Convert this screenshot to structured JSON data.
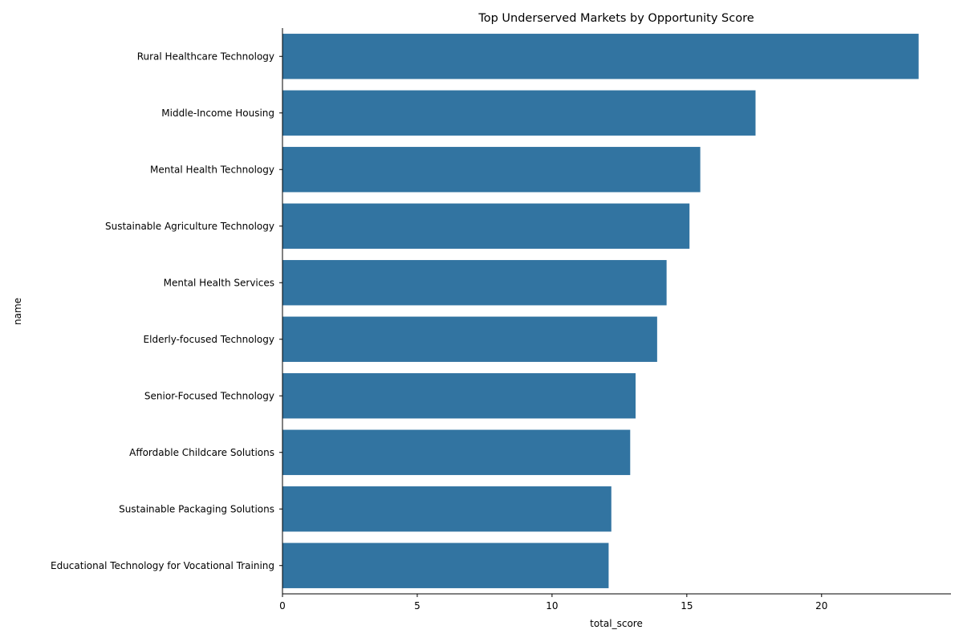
{
  "chart_data": {
    "type": "bar",
    "orientation": "horizontal",
    "title": "Top Underserved Markets by Opportunity Score",
    "xlabel": "total_score",
    "ylabel": "name",
    "xlim": [
      0,
      24.8
    ],
    "xticks": [
      0,
      5,
      10,
      15,
      20
    ],
    "grid": false,
    "bar_color": "#3274a1",
    "categories": [
      "Rural Healthcare Technology",
      "Middle-Income Housing",
      "Mental Health Technology",
      "Sustainable Agriculture Technology",
      "Mental Health Services",
      "Elderly-focused Technology",
      "Senior-Focused Technology",
      "Affordable Childcare Solutions",
      "Sustainable Packaging Solutions",
      "Educational Technology for Vocational Training"
    ],
    "values": [
      23.6,
      17.55,
      15.5,
      15.1,
      14.25,
      13.9,
      13.1,
      12.9,
      12.2,
      12.1
    ]
  }
}
